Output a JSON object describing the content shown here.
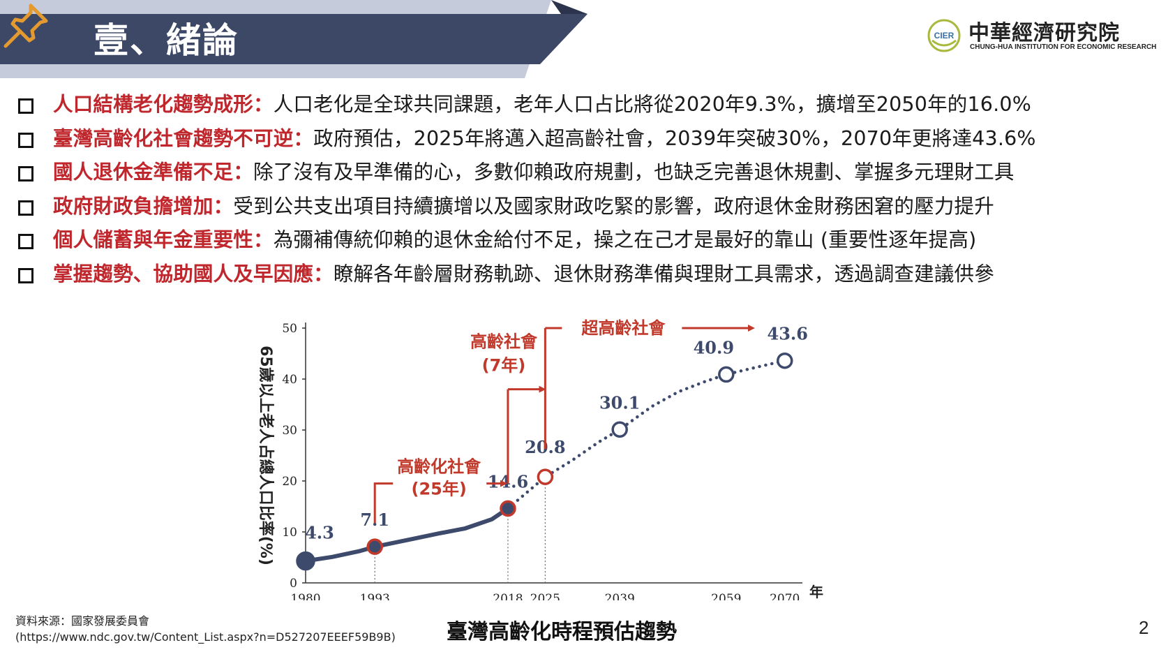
{
  "header": {
    "title": "壹、緒論",
    "colors": {
      "bar": "#3d4866",
      "accent": "#c6cbdc",
      "pin": "#e59a2f"
    }
  },
  "logo": {
    "mark": "CIER",
    "name": "中華經濟研究院",
    "english": "CHUNG-HUA INSTITUTION FOR ECONOMIC RESEARCH",
    "colors": {
      "ring": "#a8b93c",
      "text": "#3a6ea5"
    }
  },
  "bullets": [
    {
      "keyword": "人口結構老化趨勢成形：",
      "text": "人口老化是全球共同課題，老年人口占比將從2020年9.3%，擴增至2050年的16.0%"
    },
    {
      "keyword": "臺灣高齡化社會趨勢不可逆：",
      "text": "政府預估，2025年將邁入超高齡社會，2039年突破30%，2070年更將達43.6%"
    },
    {
      "keyword": "國人退休金準備不足：",
      "text": "除了沒有及早準備的心，多數仰賴政府規劃，也缺乏完善退休規劃、掌握多元理財工具"
    },
    {
      "keyword": "政府財政負擔增加：",
      "text": "受到公共支出項目持續擴增以及國家財政吃緊的影響，政府退休金財務困窘的壓力提升"
    },
    {
      "keyword": "個人儲蓄與年金重要性：",
      "text": "為彌補傳統仰賴的退休金給付不足，操之在己才是最好的靠山 (重要性逐年提高)"
    },
    {
      "keyword": "掌握趨勢、協助國人及早因應：",
      "text": "瞭解各年齡層財務軌跡、退休財務準備與理財工具需求，透過調查建議供參"
    }
  ],
  "chart_data": {
    "type": "line",
    "ylabel": "65歲以上老人占總人口比率(%)",
    "xlabel": "年",
    "x_ticks": [
      1980,
      1993,
      2018,
      2025,
      2039,
      2059,
      2070
    ],
    "y_ticks": [
      0,
      10,
      20,
      30,
      40,
      50
    ],
    "ylim": [
      0,
      50
    ],
    "xlim": [
      1980,
      2072
    ],
    "actual": {
      "x": [
        1980,
        1985,
        1990,
        1993,
        2000,
        2005,
        2010,
        2015,
        2018
      ],
      "y": [
        4.3,
        5.1,
        6.2,
        7.1,
        8.6,
        9.7,
        10.7,
        12.5,
        14.6
      ]
    },
    "projected": {
      "x": [
        2018,
        2025,
        2030,
        2035,
        2039,
        2045,
        2050,
        2055,
        2059,
        2065,
        2070
      ],
      "y": [
        14.6,
        20.8,
        24.0,
        27.6,
        30.1,
        34.6,
        37.5,
        39.5,
        40.9,
        42.4,
        43.6
      ]
    },
    "points": [
      {
        "year": 1980,
        "value": 4.3,
        "label": "4.3",
        "style": "filled"
      },
      {
        "year": 1993,
        "value": 7.1,
        "label": "7.1",
        "style": "red"
      },
      {
        "year": 2018,
        "value": 14.6,
        "label": "14.6",
        "style": "red"
      },
      {
        "year": 2025,
        "value": 20.8,
        "label": "20.8",
        "style": "red-open"
      },
      {
        "year": 2039,
        "value": 30.1,
        "label": "30.1",
        "style": "open"
      },
      {
        "year": 2059,
        "value": 40.9,
        "label": "40.9",
        "style": "open"
      },
      {
        "year": 2070,
        "value": 43.6,
        "label": "43.6",
        "style": "open"
      }
    ],
    "annotations": [
      {
        "line1": "高齡化社會",
        "line2": "(25年)"
      },
      {
        "line1": "高齡社會",
        "line2": "(7年)"
      },
      {
        "line1": "超高齡社會",
        "line2": ""
      }
    ],
    "colors": {
      "line": "#3d4a6b",
      "accent": "#c0392b",
      "projected": "#3d4a6b"
    }
  },
  "footer": {
    "source_label": "資料來源：國家發展委員會",
    "source_url": "(https://www.ndc.gov.tw/Content_List.aspx?n=D527207EEEF59B9B)",
    "caption": "臺灣高齡化時程預估趨勢",
    "page_number": "2"
  }
}
